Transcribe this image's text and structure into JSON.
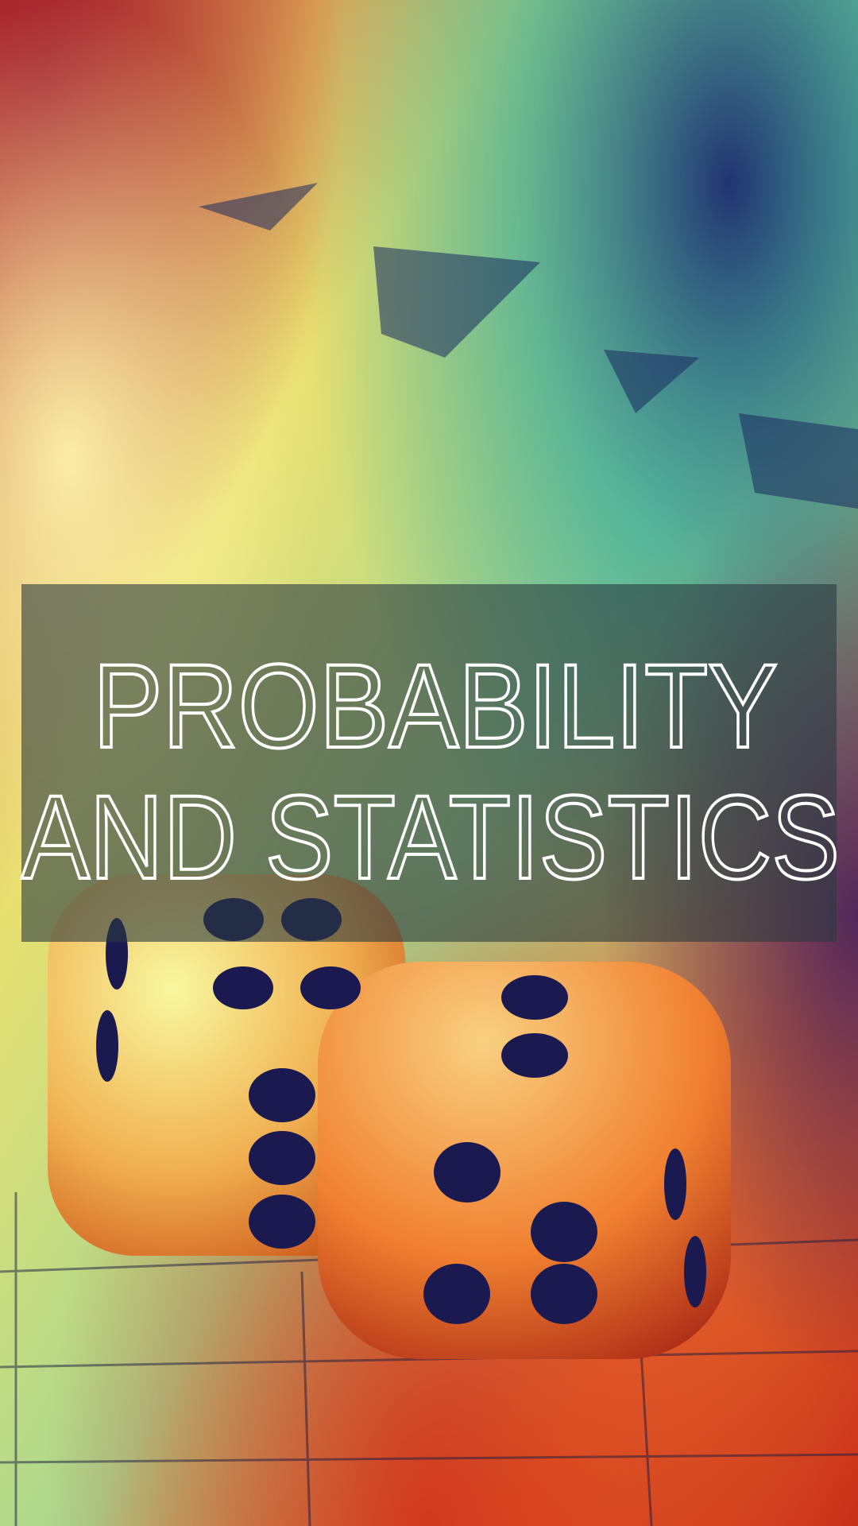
{
  "title": {
    "line1": "PROBABILITY",
    "line2": "AND STATISTICS"
  }
}
